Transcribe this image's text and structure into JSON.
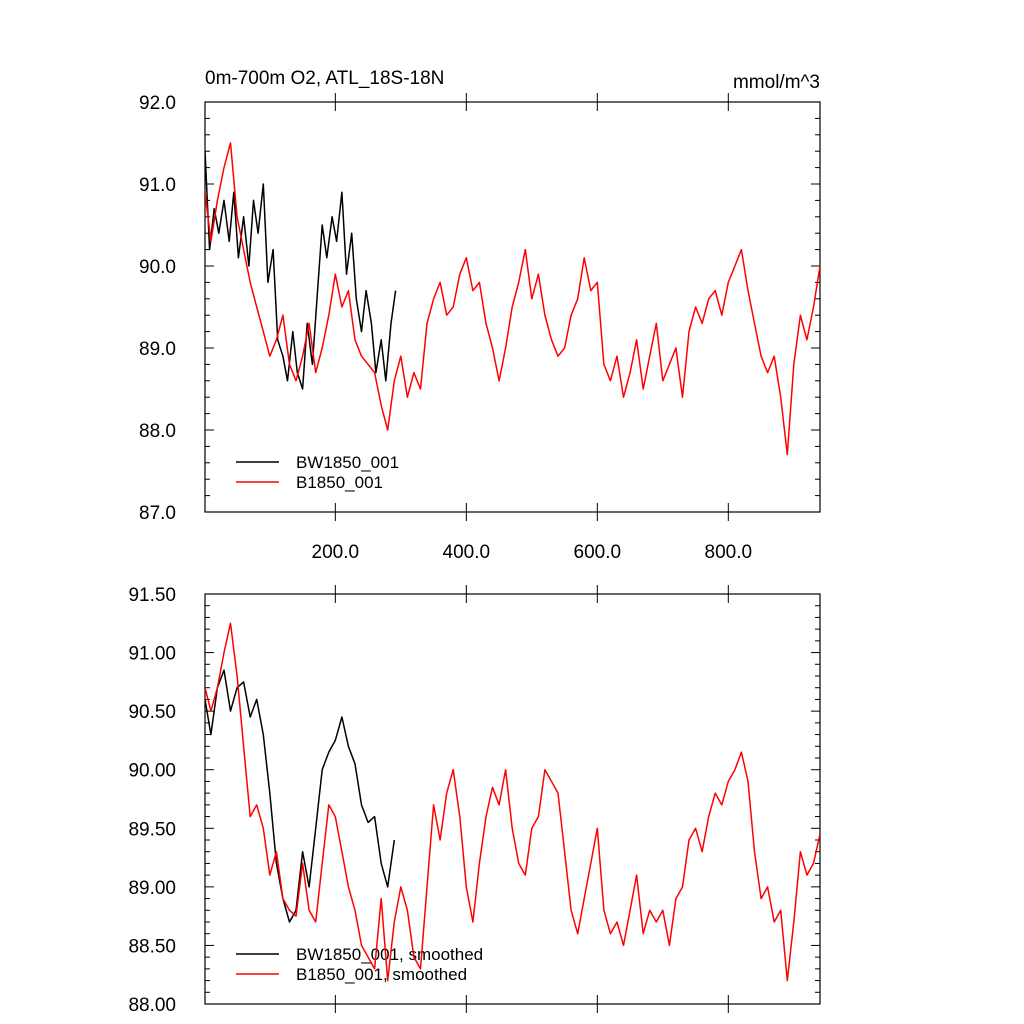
{
  "chart_data": [
    {
      "type": "line",
      "title": "0m-700m O2, ATL_18S-18N",
      "units_label": "mmol/m^3",
      "xlabel": "",
      "ylabel": "",
      "xlim": [
        1,
        940
      ],
      "ylim": [
        87.0,
        92.0
      ],
      "xticks": [
        200,
        400,
        600,
        800
      ],
      "xtick_labels": [
        "200.0",
        "400.0",
        "600.0",
        "800.0"
      ],
      "yticks": [
        87.0,
        88.0,
        89.0,
        90.0,
        91.0,
        92.0
      ],
      "ytick_labels": [
        "87.0",
        "88.0",
        "89.0",
        "90.0",
        "91.0",
        "92.0"
      ],
      "grid": false,
      "legend_position": "bottom-left",
      "series": [
        {
          "name": "BW1850_001",
          "color": "#000000",
          "x": [
            1,
            8,
            15,
            22,
            30,
            38,
            45,
            52,
            60,
            68,
            75,
            82,
            90,
            97,
            105,
            112,
            120,
            127,
            135,
            142,
            150,
            157,
            165,
            172,
            180,
            187,
            195,
            202,
            210,
            217,
            225,
            232,
            240,
            247,
            255,
            262,
            270,
            277,
            285,
            292
          ],
          "values": [
            91.4,
            90.2,
            90.7,
            90.4,
            90.8,
            90.3,
            90.9,
            90.1,
            90.6,
            90.0,
            90.8,
            90.4,
            91.0,
            89.8,
            90.2,
            89.1,
            88.9,
            88.6,
            89.2,
            88.7,
            88.5,
            89.3,
            88.8,
            89.6,
            90.5,
            90.1,
            90.6,
            90.3,
            90.9,
            89.9,
            90.4,
            89.6,
            89.2,
            89.7,
            89.3,
            88.7,
            89.1,
            88.6,
            89.3,
            89.7
          ]
        },
        {
          "name": "B1850_001",
          "color": "#ff0000",
          "x": [
            1,
            10,
            20,
            30,
            40,
            50,
            60,
            70,
            80,
            90,
            100,
            110,
            120,
            130,
            140,
            150,
            160,
            170,
            180,
            190,
            200,
            210,
            220,
            230,
            240,
            250,
            260,
            270,
            280,
            290,
            300,
            310,
            320,
            330,
            340,
            350,
            360,
            370,
            380,
            390,
            400,
            410,
            420,
            430,
            440,
            450,
            460,
            470,
            480,
            490,
            500,
            510,
            520,
            530,
            540,
            550,
            560,
            570,
            580,
            590,
            600,
            610,
            620,
            630,
            640,
            650,
            660,
            670,
            680,
            690,
            700,
            710,
            720,
            730,
            740,
            750,
            760,
            770,
            780,
            790,
            800,
            810,
            820,
            830,
            840,
            850,
            860,
            870,
            880,
            890,
            900,
            910,
            920,
            930,
            940
          ],
          "values": [
            90.9,
            90.3,
            90.8,
            91.2,
            91.5,
            90.6,
            90.2,
            89.8,
            89.5,
            89.2,
            88.9,
            89.1,
            89.4,
            88.8,
            88.6,
            88.9,
            89.3,
            88.7,
            89.0,
            89.4,
            89.9,
            89.5,
            89.7,
            89.1,
            88.9,
            88.8,
            88.7,
            88.3,
            88.0,
            88.6,
            88.9,
            88.4,
            88.7,
            88.5,
            89.3,
            89.6,
            89.8,
            89.4,
            89.5,
            89.9,
            90.1,
            89.7,
            89.8,
            89.3,
            89.0,
            88.6,
            89.0,
            89.5,
            89.8,
            90.2,
            89.6,
            89.9,
            89.4,
            89.1,
            88.9,
            89.0,
            89.4,
            89.6,
            90.1,
            89.7,
            89.8,
            88.8,
            88.6,
            88.9,
            88.4,
            88.7,
            89.1,
            88.5,
            88.9,
            89.3,
            88.6,
            88.8,
            89.0,
            88.4,
            89.2,
            89.5,
            89.3,
            89.6,
            89.7,
            89.4,
            89.8,
            90.0,
            90.2,
            89.7,
            89.3,
            88.9,
            88.7,
            88.9,
            88.4,
            87.7,
            88.8,
            89.4,
            89.1,
            89.5,
            90.0
          ]
        }
      ]
    },
    {
      "type": "line",
      "title": "",
      "xlabel": "",
      "ylabel": "",
      "xlim": [
        1,
        940
      ],
      "ylim": [
        88.0,
        91.5
      ],
      "xticks": [
        200,
        400,
        600,
        800
      ],
      "xtick_labels": [],
      "yticks": [
        88.0,
        88.5,
        89.0,
        89.5,
        90.0,
        90.5,
        91.0,
        91.5
      ],
      "ytick_labels": [
        "88.00",
        "88.50",
        "89.00",
        "89.50",
        "90.00",
        "90.50",
        "91.00",
        "91.50"
      ],
      "grid": false,
      "legend_position": "bottom-left",
      "series": [
        {
          "name": "BW1850_001, smoothed",
          "color": "#000000",
          "x": [
            1,
            10,
            20,
            30,
            40,
            50,
            60,
            70,
            80,
            90,
            100,
            110,
            120,
            130,
            140,
            150,
            160,
            170,
            180,
            190,
            200,
            210,
            220,
            230,
            240,
            250,
            260,
            270,
            280,
            290
          ],
          "values": [
            90.6,
            90.3,
            90.7,
            90.85,
            90.5,
            90.7,
            90.75,
            90.45,
            90.6,
            90.3,
            89.8,
            89.2,
            88.9,
            88.7,
            88.8,
            89.3,
            89.0,
            89.5,
            90.0,
            90.15,
            90.25,
            90.45,
            90.2,
            90.05,
            89.7,
            89.55,
            89.6,
            89.2,
            89.0,
            89.4
          ]
        },
        {
          "name": "B1850_001, smoothed",
          "color": "#ff0000",
          "x": [
            1,
            10,
            20,
            30,
            40,
            50,
            60,
            70,
            80,
            90,
            100,
            110,
            120,
            130,
            140,
            150,
            160,
            170,
            180,
            190,
            200,
            210,
            220,
            230,
            240,
            250,
            260,
            270,
            280,
            290,
            300,
            310,
            320,
            330,
            340,
            350,
            360,
            370,
            380,
            390,
            400,
            410,
            420,
            430,
            440,
            450,
            460,
            470,
            480,
            490,
            500,
            510,
            520,
            530,
            540,
            550,
            560,
            570,
            580,
            590,
            600,
            610,
            620,
            630,
            640,
            650,
            660,
            670,
            680,
            690,
            700,
            710,
            720,
            730,
            740,
            750,
            760,
            770,
            780,
            790,
            800,
            810,
            820,
            830,
            840,
            850,
            860,
            870,
            880,
            890,
            900,
            910,
            920,
            930,
            940
          ],
          "values": [
            90.7,
            90.5,
            90.7,
            91.0,
            91.25,
            90.8,
            90.2,
            89.6,
            89.7,
            89.5,
            89.1,
            89.3,
            88.9,
            88.8,
            88.75,
            89.2,
            88.8,
            88.7,
            89.2,
            89.7,
            89.6,
            89.3,
            89.0,
            88.8,
            88.5,
            88.4,
            88.3,
            88.9,
            88.2,
            88.7,
            89.0,
            88.8,
            88.4,
            88.3,
            89.0,
            89.7,
            89.4,
            89.8,
            90.0,
            89.6,
            89.0,
            88.7,
            89.2,
            89.6,
            89.85,
            89.7,
            90.0,
            89.5,
            89.2,
            89.1,
            89.5,
            89.6,
            90.0,
            89.9,
            89.8,
            89.3,
            88.8,
            88.6,
            88.9,
            89.2,
            89.5,
            88.8,
            88.6,
            88.7,
            88.5,
            88.8,
            89.1,
            88.6,
            88.8,
            88.7,
            88.8,
            88.5,
            88.9,
            89.0,
            89.4,
            89.5,
            89.3,
            89.6,
            89.8,
            89.7,
            89.9,
            90.0,
            90.15,
            89.9,
            89.3,
            88.9,
            89.0,
            88.7,
            88.8,
            88.2,
            88.7,
            89.3,
            89.1,
            89.2,
            89.45
          ]
        }
      ]
    }
  ]
}
